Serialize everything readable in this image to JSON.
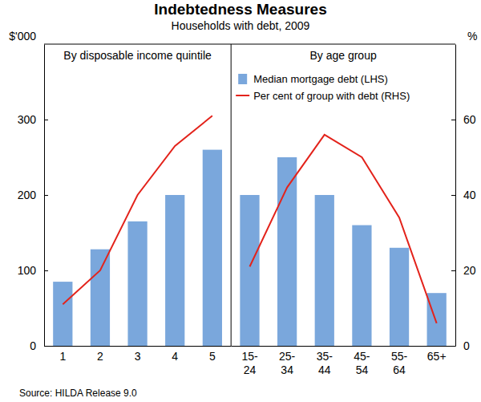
{
  "title": "Indebtedness Measures",
  "subtitle": "Households with debt, 2009",
  "source": "Source: HILDA Release 9.0",
  "chart_data": [
    {
      "type": "bar",
      "title": "By disposable income quintile",
      "y_label": "$'000",
      "categories": [
        "1",
        "2",
        "3",
        "4",
        "5"
      ],
      "series": [
        {
          "name": "Median mortgage debt (LHS)",
          "type": "bar",
          "color": "#7aa7dc",
          "values": [
            85,
            128,
            165,
            200,
            260
          ]
        },
        {
          "name": "Per cent of group with debt (RHS)",
          "type": "line",
          "axis": "y2",
          "color": "#e3231b",
          "values": [
            11,
            20,
            40,
            53,
            61
          ]
        }
      ],
      "ylim": [
        0,
        400
      ],
      "yticks": [
        0,
        100,
        200,
        300
      ],
      "y2lim": [
        0,
        80
      ],
      "grid": false
    },
    {
      "type": "bar",
      "title": "By age group",
      "y2_label": "%",
      "categories": [
        "15-24",
        "25-34",
        "35-44",
        "45-54",
        "55-64",
        "65+"
      ],
      "series": [
        {
          "name": "Median mortgage debt (LHS)",
          "type": "bar",
          "color": "#7aa7dc",
          "values": [
            200,
            250,
            200,
            160,
            130,
            70
          ]
        },
        {
          "name": "Per cent of group with debt (RHS)",
          "type": "line",
          "axis": "y2",
          "color": "#e3231b",
          "values": [
            21,
            42,
            56,
            50,
            34,
            6
          ]
        }
      ],
      "ylim": [
        0,
        400
      ],
      "y2lim": [
        0,
        80
      ],
      "y2ticks": [
        0,
        20,
        40,
        60
      ],
      "legend": "top",
      "grid": false
    }
  ]
}
